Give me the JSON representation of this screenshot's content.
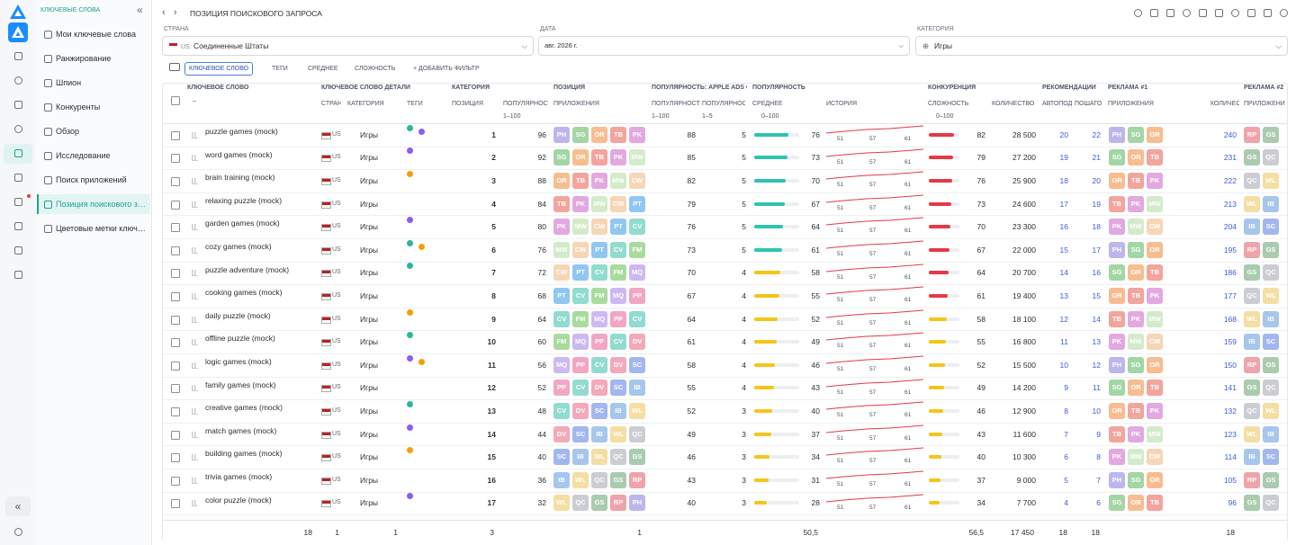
{
  "sidebar": {
    "section": "КЛЮЧЕВЫЕ СЛОВА",
    "items": [
      "Мои ключевые слова",
      "Ранжирование",
      "Шпион",
      "Конкуренты",
      "Обзор",
      "Исследование",
      "Поиск приложений",
      "Позиция поискового за...",
      "Цветовые метки ключевы..."
    ],
    "active": 7
  },
  "header": {
    "title": "ПОЗИЦИЯ ПОИСКОВОГО ЗАПРОСА"
  },
  "filters": {
    "country_label": "СТРАНА",
    "country_code": "US:",
    "country": "Соединенные Штаты",
    "date_label": "ДАТА",
    "date": "авг. 2026 г.",
    "category_label": "КАТЕГОРИЯ",
    "category": "Игры",
    "chips": [
      "КЛЮЧЕВОЕ СЛОВО",
      "ТЕГИ",
      "СРЕДНЕЕ",
      "СЛОЖНОСТЬ",
      "+ ДОБАВИТЬ ФИЛЬТР"
    ]
  },
  "table": {
    "groups": [
      "КЛЮЧЕВОЕ СЛОВО",
      "КЛЮЧЕВОЕ СЛОВО ДЕТАЛИ",
      "КАТЕГОРИЯ",
      "ПОЗИЦИЯ",
      "ПОПУЛЯРНОСТЬ: APPLE ADS С",
      "ПОПУЛЯРНОСТЬ",
      "КОНКУРЕНЦИЯ",
      "РЕКОМЕНДАЦИИ",
      "РЕКЛАМА #1",
      "РЕКЛАМА #2"
    ],
    "columns": [
      "СТРАН",
      "КАТЕГОРИЯ",
      "ТЕГИ",
      "ПОЗИЦИЯ",
      "ПОПУЛЯРНОСТЬ",
      "ПРИЛОЖЕНИЯ",
      "ПОПУЛЯРНОСТЬ",
      "ПОПУЛЯРНОСТЬ",
      "СРЕДНЕЕ",
      "ИСТОРИЯ",
      "СЛОЖНОСТЬ",
      "КОЛИЧЕСТВО",
      "АВТОПОД",
      "ПОШАГО",
      "ПРИЛОЖЕНИЯ",
      "КОЛИЧЕС",
      "ПРИЛОЖЕНИЯ"
    ],
    "keyword_filter": "–",
    "ranges": [
      "1–100",
      "1–100",
      "1–5",
      "0–100",
      "0–100"
    ],
    "app_colors": {
      "PH": "#bdb6ec",
      "SG": "#a3d6a4",
      "OR": "#f7bd90",
      "TB": "#f2a59d",
      "PK": "#e2a8e0",
      "MW": "#d3ebcb",
      "CW": "#f6d6b6",
      "PT": "#90c7f2",
      "CV": "#92dbd0",
      "FM": "#a9db9f",
      "MQ": "#cdb8f2",
      "PP": "#f2a6c3",
      "DV": "#f3a9ba",
      "SC": "#a2b6ef",
      "IB": "#a6c6ec",
      "WL": "#f5dea3",
      "QC": "#cbcdd2",
      "GS": "#aacbae",
      "RP": "#efa3ab"
    },
    "rows": [
      {
        "keyword": "puzzle games (mock)",
        "country": "US",
        "category": "Игры",
        "tags": [
          "#2bb5a0",
          "#8b5cf6"
        ],
        "position": "1",
        "popularity": "96",
        "apps": [
          "PH",
          "SG",
          "OR",
          "TB",
          "PK"
        ],
        "apple_pop": "88",
        "apple_rank": "5",
        "avg": 76,
        "avg_color": "#2ec4b0",
        "history": [
          "51",
          "57",
          "61"
        ],
        "difficulty": 82,
        "diff_color": "#e53946",
        "count": "28 500",
        "rec_auto": "20",
        "rec_step": "22",
        "ad1": [
          "PH",
          "SG",
          "OR"
        ],
        "ad_count": "240",
        "ad2": [
          "RP",
          "GS"
        ]
      },
      {
        "keyword": "word games (mock)",
        "country": "US",
        "category": "Игры",
        "tags": [
          "#8b5cf6"
        ],
        "position": "2",
        "popularity": "92",
        "apps": [
          "SG",
          "OR",
          "TB",
          "PK",
          "MW"
        ],
        "apple_pop": "85",
        "apple_rank": "5",
        "avg": 73,
        "avg_color": "#2ec4b0",
        "history": [
          "51",
          "57",
          "61"
        ],
        "difficulty": 79,
        "diff_color": "#e53946",
        "count": "27 200",
        "rec_auto": "19",
        "rec_step": "21",
        "ad1": [
          "SG",
          "OR",
          "TB"
        ],
        "ad_count": "231",
        "ad2": [
          "GS",
          "QC"
        ]
      },
      {
        "keyword": "brain training (mock)",
        "country": "US",
        "category": "Игры",
        "tags": [
          "#f59e0b"
        ],
        "position": "3",
        "popularity": "88",
        "apps": [
          "OR",
          "TB",
          "PK",
          "MW",
          "CW"
        ],
        "apple_pop": "82",
        "apple_rank": "5",
        "avg": 70,
        "avg_color": "#2ec4b0",
        "history": [
          "51",
          "57",
          "61"
        ],
        "difficulty": 76,
        "diff_color": "#e53946",
        "count": "25 900",
        "rec_auto": "18",
        "rec_step": "20",
        "ad1": [
          "OR",
          "TB",
          "PK"
        ],
        "ad_count": "222",
        "ad2": [
          "QC",
          "WL"
        ]
      },
      {
        "keyword": "relaxing puzzle (mock)",
        "country": "US",
        "category": "Игры",
        "tags": [],
        "position": "4",
        "popularity": "84",
        "apps": [
          "TB",
          "PK",
          "MW",
          "CW",
          "PT"
        ],
        "apple_pop": "79",
        "apple_rank": "5",
        "avg": 67,
        "avg_color": "#2ec4b0",
        "history": [
          "51",
          "57",
          "61"
        ],
        "difficulty": 73,
        "diff_color": "#e53946",
        "count": "24 600",
        "rec_auto": "17",
        "rec_step": "19",
        "ad1": [
          "TB",
          "PK",
          "MW"
        ],
        "ad_count": "213",
        "ad2": [
          "WL",
          "IB"
        ]
      },
      {
        "keyword": "garden games (mock)",
        "country": "US",
        "category": "Игры",
        "tags": [
          "#8b5cf6"
        ],
        "position": "5",
        "popularity": "80",
        "apps": [
          "PK",
          "MW",
          "CW",
          "PT",
          "CV"
        ],
        "apple_pop": "76",
        "apple_rank": "5",
        "avg": 64,
        "avg_color": "#2ec4b0",
        "history": [
          "51",
          "57",
          "61"
        ],
        "difficulty": 70,
        "diff_color": "#e53946",
        "count": "23 300",
        "rec_auto": "16",
        "rec_step": "18",
        "ad1": [
          "PK",
          "MW",
          "CW"
        ],
        "ad_count": "204",
        "ad2": [
          "IB",
          "SC"
        ]
      },
      {
        "keyword": "cozy games (mock)",
        "country": "US",
        "category": "Игры",
        "tags": [
          "#2bb5a0",
          "#f59e0b"
        ],
        "position": "6",
        "popularity": "76",
        "apps": [
          "MW",
          "CW",
          "PT",
          "CV",
          "FM"
        ],
        "apple_pop": "73",
        "apple_rank": "5",
        "avg": 61,
        "avg_color": "#2ec4b0",
        "history": [
          "51",
          "57",
          "61"
        ],
        "difficulty": 67,
        "diff_color": "#e53946",
        "count": "22 000",
        "rec_auto": "15",
        "rec_step": "17",
        "ad1": [
          "PH",
          "SG",
          "OR"
        ],
        "ad_count": "195",
        "ad2": [
          "RP",
          "GS"
        ]
      },
      {
        "keyword": "puzzle adventure (mock)",
        "country": "US",
        "category": "Игры",
        "tags": [
          "#2bb5a0"
        ],
        "position": "7",
        "popularity": "72",
        "apps": [
          "CW",
          "PT",
          "CV",
          "FM",
          "MQ"
        ],
        "apple_pop": "70",
        "apple_rank": "4",
        "avg": 58,
        "avg_color": "#f5c518",
        "history": [
          "51",
          "57",
          "61"
        ],
        "difficulty": 64,
        "diff_color": "#e53946",
        "count": "20 700",
        "rec_auto": "14",
        "rec_step": "16",
        "ad1": [
          "SG",
          "OR",
          "TB"
        ],
        "ad_count": "186",
        "ad2": [
          "GS",
          "QC"
        ]
      },
      {
        "keyword": "cooking games (mock)",
        "country": "US",
        "category": "Игры",
        "tags": [],
        "position": "8",
        "popularity": "68",
        "apps": [
          "PT",
          "CV",
          "FM",
          "MQ",
          "PP"
        ],
        "apple_pop": "67",
        "apple_rank": "4",
        "avg": 55,
        "avg_color": "#f5c518",
        "history": [
          "51",
          "57",
          "61"
        ],
        "difficulty": 61,
        "diff_color": "#e53946",
        "count": "19 400",
        "rec_auto": "13",
        "rec_step": "15",
        "ad1": [
          "OR",
          "TB",
          "PK"
        ],
        "ad_count": "177",
        "ad2": [
          "QC",
          "WL"
        ]
      },
      {
        "keyword": "daily puzzle (mock)",
        "country": "US",
        "category": "Игры",
        "tags": [
          "#f59e0b"
        ],
        "position": "9",
        "popularity": "64",
        "apps": [
          "CV",
          "FM",
          "MQ",
          "PP",
          "CV"
        ],
        "apple_pop": "64",
        "apple_rank": "4",
        "avg": 52,
        "avg_color": "#f5c518",
        "history": [
          "51",
          "57",
          "61"
        ],
        "difficulty": 58,
        "diff_color": "#f5c518",
        "count": "18 100",
        "rec_auto": "12",
        "rec_step": "14",
        "ad1": [
          "TB",
          "PK",
          "MW"
        ],
        "ad_count": "168",
        "ad2": [
          "WL",
          "IB"
        ]
      },
      {
        "keyword": "offline puzzle (mock)",
        "country": "US",
        "category": "Игры",
        "tags": [
          "#2bb5a0"
        ],
        "position": "10",
        "popularity": "60",
        "apps": [
          "FM",
          "MQ",
          "PP",
          "CV",
          "DV"
        ],
        "apple_pop": "61",
        "apple_rank": "4",
        "avg": 49,
        "avg_color": "#f5c518",
        "history": [
          "51",
          "57",
          "61"
        ],
        "difficulty": 55,
        "diff_color": "#f5c518",
        "count": "16 800",
        "rec_auto": "11",
        "rec_step": "13",
        "ad1": [
          "PK",
          "MW",
          "CW"
        ],
        "ad_count": "159",
        "ad2": [
          "IB",
          "SC"
        ]
      },
      {
        "keyword": "logic games (mock)",
        "country": "US",
        "category": "Игры",
        "tags": [
          "#8b5cf6",
          "#f59e0b"
        ],
        "position": "11",
        "popularity": "56",
        "apps": [
          "MQ",
          "PP",
          "CV",
          "DV",
          "SC"
        ],
        "apple_pop": "58",
        "apple_rank": "4",
        "avg": 46,
        "avg_color": "#f5c518",
        "history": [
          "51",
          "57",
          "61"
        ],
        "difficulty": 52,
        "diff_color": "#f5c518",
        "count": "15 500",
        "rec_auto": "10",
        "rec_step": "12",
        "ad1": [
          "PH",
          "SG",
          "OR"
        ],
        "ad_count": "150",
        "ad2": [
          "RP",
          "GS"
        ]
      },
      {
        "keyword": "family games (mock)",
        "country": "US",
        "category": "Игры",
        "tags": [],
        "position": "12",
        "popularity": "52",
        "apps": [
          "PP",
          "CV",
          "DV",
          "SC",
          "IB"
        ],
        "apple_pop": "55",
        "apple_rank": "4",
        "avg": 43,
        "avg_color": "#f5c518",
        "history": [
          "51",
          "57",
          "61"
        ],
        "difficulty": 49,
        "diff_color": "#f5c518",
        "count": "14 200",
        "rec_auto": "9",
        "rec_step": "11",
        "ad1": [
          "SG",
          "OR",
          "TB"
        ],
        "ad_count": "141",
        "ad2": [
          "GS",
          "QC"
        ]
      },
      {
        "keyword": "creative games (mock)",
        "country": "US",
        "category": "Игры",
        "tags": [
          "#2bb5a0"
        ],
        "position": "13",
        "popularity": "48",
        "apps": [
          "CV",
          "DV",
          "SC",
          "IB",
          "WL"
        ],
        "apple_pop": "52",
        "apple_rank": "3",
        "avg": 40,
        "avg_color": "#f5c518",
        "history": [
          "51",
          "57",
          "61"
        ],
        "difficulty": 46,
        "diff_color": "#f5c518",
        "count": "12 900",
        "rec_auto": "8",
        "rec_step": "10",
        "ad1": [
          "OR",
          "TB",
          "PK"
        ],
        "ad_count": "132",
        "ad2": [
          "QC",
          "WL"
        ]
      },
      {
        "keyword": "match games (mock)",
        "country": "US",
        "category": "Игры",
        "tags": [
          "#8b5cf6"
        ],
        "position": "14",
        "popularity": "44",
        "apps": [
          "DV",
          "SC",
          "IB",
          "WL",
          "QC"
        ],
        "apple_pop": "49",
        "apple_rank": "3",
        "avg": 37,
        "avg_color": "#f5c518",
        "history": [
          "51",
          "57",
          "61"
        ],
        "difficulty": 43,
        "diff_color": "#f5c518",
        "count": "11 600",
        "rec_auto": "7",
        "rec_step": "9",
        "ad1": [
          "TB",
          "PK",
          "MW"
        ],
        "ad_count": "123",
        "ad2": [
          "WL",
          "IB"
        ]
      },
      {
        "keyword": "building games (mock)",
        "country": "US",
        "category": "Игры",
        "tags": [
          "#f59e0b"
        ],
        "position": "15",
        "popularity": "40",
        "apps": [
          "SC",
          "IB",
          "WL",
          "QC",
          "GS"
        ],
        "apple_pop": "46",
        "apple_rank": "3",
        "avg": 34,
        "avg_color": "#f5c518",
        "history": [
          "51",
          "57",
          "61"
        ],
        "difficulty": 40,
        "diff_color": "#f5c518",
        "count": "10 300",
        "rec_auto": "6",
        "rec_step": "8",
        "ad1": [
          "PK",
          "MW",
          "CW"
        ],
        "ad_count": "114",
        "ad2": [
          "IB",
          "SC"
        ]
      },
      {
        "keyword": "trivia games (mock)",
        "country": "US",
        "category": "Игры",
        "tags": [],
        "position": "16",
        "popularity": "36",
        "apps": [
          "IB",
          "WL",
          "QC",
          "GS",
          "RP"
        ],
        "apple_pop": "43",
        "apple_rank": "3",
        "avg": 31,
        "avg_color": "#f5c518",
        "history": [
          "51",
          "57",
          "61"
        ],
        "difficulty": 37,
        "diff_color": "#f5c518",
        "count": "9 000",
        "rec_auto": "5",
        "rec_step": "7",
        "ad1": [
          "PH",
          "SG",
          "OR"
        ],
        "ad_count": "105",
        "ad2": [
          "RP",
          "GS"
        ]
      },
      {
        "keyword": "color puzzle (mock)",
        "country": "US",
        "category": "Игры",
        "tags": [
          "#8b5cf6"
        ],
        "position": "17",
        "popularity": "32",
        "apps": [
          "WL",
          "QC",
          "GS",
          "RP",
          "PH"
        ],
        "apple_pop": "40",
        "apple_rank": "3",
        "avg": 28,
        "avg_color": "#f5c518",
        "history": [
          "51",
          "57",
          "61"
        ],
        "difficulty": 34,
        "diff_color": "#f5c518",
        "count": "7 700",
        "rec_auto": "4",
        "rec_step": "6",
        "ad1": [
          "SG",
          "OR",
          "TB"
        ],
        "ad_count": "96",
        "ad2": [
          "GS",
          "QC"
        ]
      }
    ],
    "footer": [
      "18",
      "1",
      "1",
      "3",
      "1",
      "50,5",
      "56,5",
      "17 450",
      "18",
      "18",
      "18"
    ]
  }
}
